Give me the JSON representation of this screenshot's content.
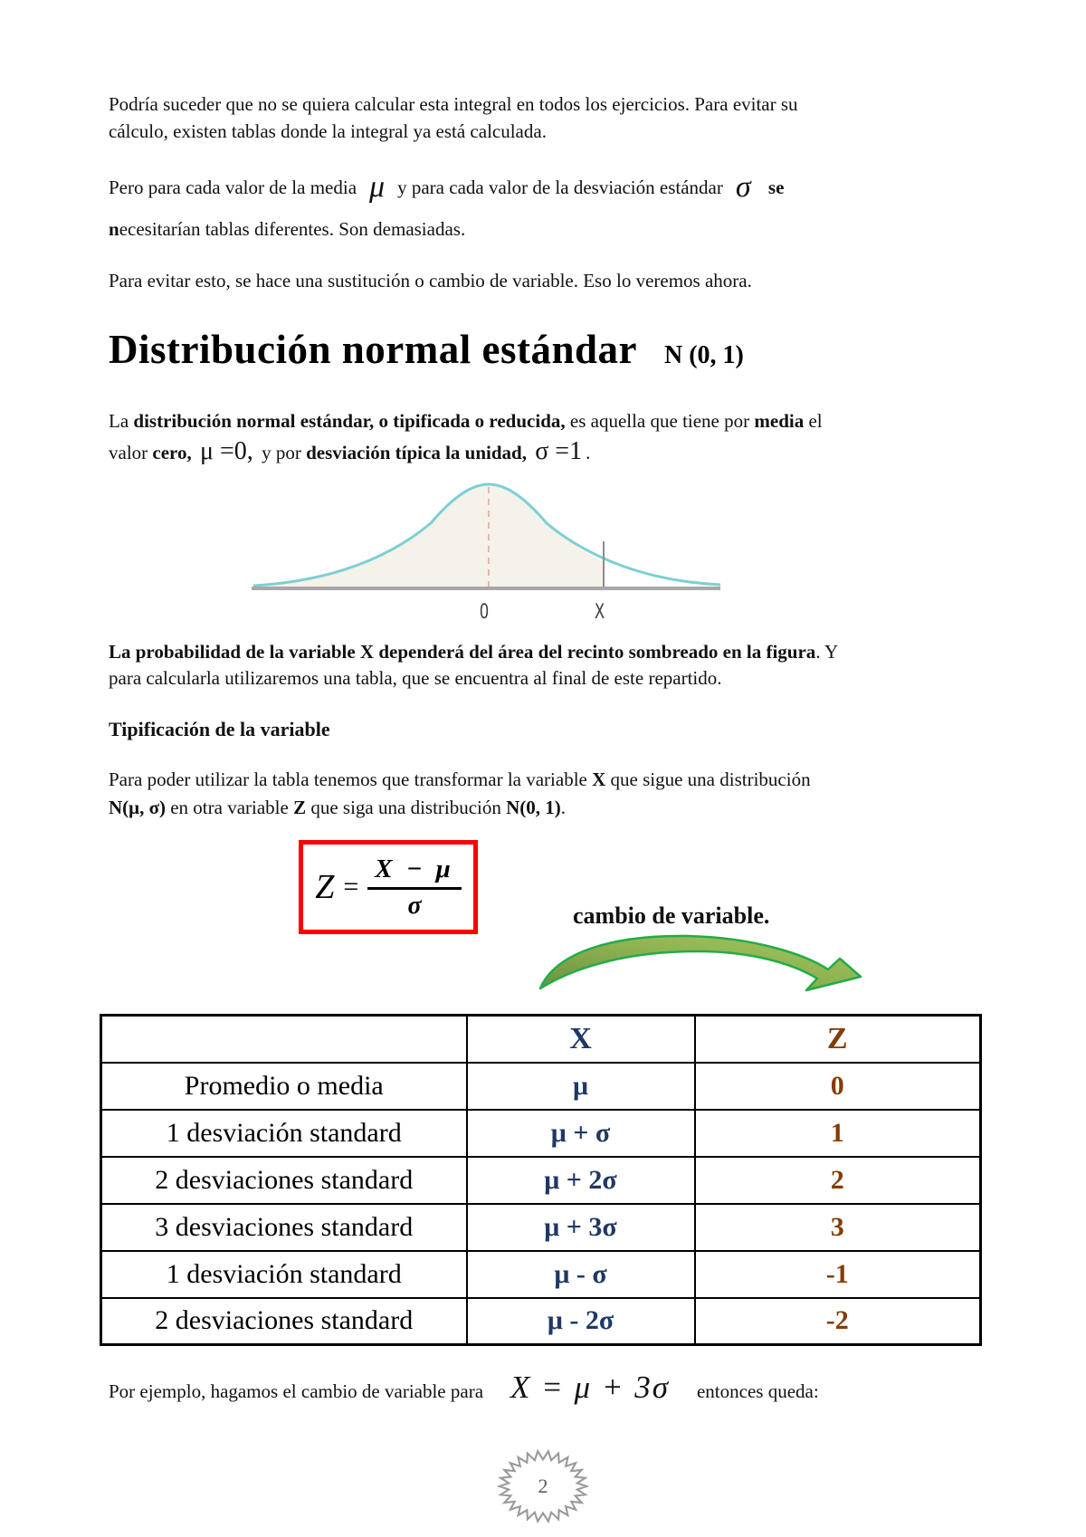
{
  "doc": {
    "p1_l1": "Podría suceder que no se quiera calcular esta integral en todos los ejercicios. Para evitar su",
    "p1_l2": "cálculo, existen tablas donde la integral ya está calculada.",
    "p2_t1": "Pero para cada valor de la media",
    "p2_mu": "μ",
    "p2_t2": "y para cada valor de la desviación estándar",
    "p2_sigma": "σ",
    "p2_se": "se",
    "p2_n": "n",
    "p2_t3": "ecesitarían tablas diferentes. Son demasiadas.",
    "p3": "Para evitar esto, se hace una sustitución o cambio de variable.  Eso lo veremos ahora."
  },
  "title": {
    "main": "Distribución normal estándar",
    "notation": "N (0, 1)"
  },
  "definition": {
    "t1": "La",
    "b1": "distribución normal estándar, o tipificada o reducida,",
    "t2": "es aquella que tiene por",
    "b2": "media",
    "t3": "el",
    "t4": "valor",
    "b3": "cero,",
    "m1": "μ =0,",
    "t5": "y por",
    "b4": "desviación típica la unidad,",
    "m2": "σ =1",
    "t6": "."
  },
  "figure": {
    "label_zero": "0",
    "label_x": "X"
  },
  "probability": {
    "b1": "La probabilidad de la variable X dependerá del área del recinto sombreado en la figura",
    "t1": ". Y",
    "l2": "para calcularla utilizaremos una tabla, que se encuentra al final de este repartido."
  },
  "tipificacion": {
    "heading": "Tipificación de la variable",
    "t1": "Para poder utilizar la tabla tenemos que transformar la variable",
    "b1": "X",
    "t2": "que sigue una distribución",
    "b2": "N(μ, σ)",
    "t3": "en otra variable",
    "b3": "Z",
    "t4": "que siga una distribución",
    "b4": "N(0, 1)",
    "t5": "."
  },
  "formula": {
    "lhs": "Z",
    "equals": "=",
    "numerator": "X − μ",
    "denominator": "σ"
  },
  "cambio": {
    "label": "cambio de variable."
  },
  "table": {
    "header": {
      "desc": "",
      "x": "X",
      "z": "Z"
    },
    "rows": [
      {
        "desc": "Promedio o media",
        "x": "μ",
        "z": "0"
      },
      {
        "desc": "1 desviación standard",
        "x": "μ + σ",
        "z": "1"
      },
      {
        "desc": "2 desviaciones standard",
        "x": "μ + 2σ",
        "z": "2"
      },
      {
        "desc": "3 desviaciones standard",
        "x": "μ + 3σ",
        "z": "3"
      },
      {
        "desc": "1 desviación standard",
        "x": "μ - σ",
        "z": "-1"
      },
      {
        "desc": "2 desviaciones standard",
        "x": "μ - 2σ",
        "z": "-2"
      }
    ]
  },
  "example": {
    "t1": "Por ejemplo, hagamos el cambio de variable para",
    "formula": "X = μ + 3σ",
    "t2": "entonces queda:"
  },
  "footer": {
    "page_number": "2"
  },
  "colors": {
    "curve": "#7ccfd4",
    "curve_fill": "#f5f2e9",
    "axis": "#a8a8a8",
    "center_dash": "#e2a6a6",
    "x_marker": "#8c8c8c",
    "formula_box": "#ff0000",
    "arrow_stroke": "#23ac48",
    "table_x_text": "#1f3864",
    "table_z_text": "#843c00",
    "badge": "#9a9a9a"
  }
}
